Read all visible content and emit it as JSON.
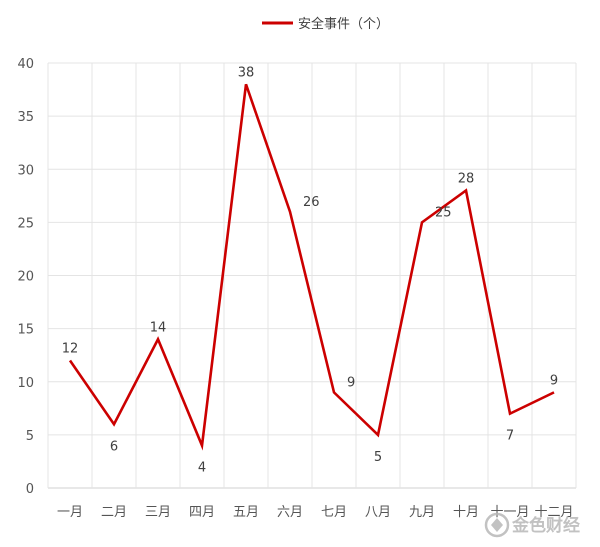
{
  "chart_data": {
    "type": "line",
    "categories": [
      "一月",
      "二月",
      "三月",
      "四月",
      "五月",
      "六月",
      "七月",
      "八月",
      "九月",
      "十月",
      "十一月",
      "十二月"
    ],
    "series": [
      {
        "name": "安全事件（个）",
        "values": [
          12,
          6,
          14,
          4,
          38,
          26,
          9,
          5,
          25,
          28,
          7,
          9
        ],
        "color": "#cc0000"
      }
    ],
    "y_ticks": [
      "0",
      "5",
      "10",
      "15",
      "20",
      "25",
      "30",
      "35",
      "40"
    ],
    "ylim": [
      0,
      40
    ],
    "grid": true,
    "legend_position": "top",
    "data_labels": true
  },
  "watermark": {
    "text": "金色财经",
    "icon": "gold-coin-logo-icon"
  }
}
